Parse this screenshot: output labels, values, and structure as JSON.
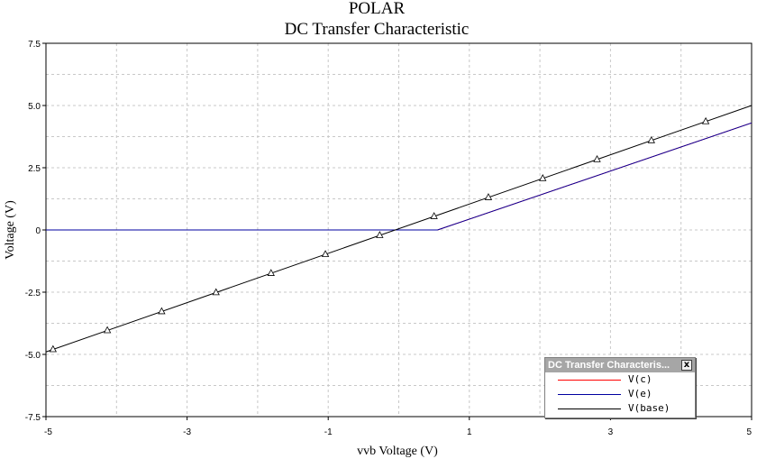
{
  "chart_data": {
    "type": "line",
    "title": "POLAR",
    "subtitle": "DC Transfer Characteristic",
    "xlabel": "vvb Voltage (V)",
    "ylabel": "Voltage (V)",
    "xlim": [
      -5,
      5
    ],
    "ylim": [
      -7.5,
      7.5
    ],
    "x_ticks": [
      -5,
      -3,
      -1,
      1,
      3,
      5
    ],
    "x_tick_labels": [
      "-5",
      "-3",
      "-1",
      "1",
      "3",
      "5"
    ],
    "y_ticks": [
      7.5,
      5.0,
      2.5,
      0,
      -2.5,
      -5.0,
      -7.5
    ],
    "y_tick_labels": [
      "7.5",
      "5.0",
      "2.5",
      "0",
      "-2.5",
      "-5.0",
      "-7.5"
    ],
    "grid": true,
    "legend_position": "bottom-right",
    "series": [
      {
        "name": "V(c)",
        "color": "#ff0000",
        "x": [
          -5,
          0.55,
          5
        ],
        "y": [
          0,
          0,
          4.3
        ]
      },
      {
        "name": "V(e)",
        "color": "#0000a0",
        "x": [
          -5,
          0.55,
          5
        ],
        "y": [
          0,
          0,
          4.3
        ]
      },
      {
        "name": "V(base)",
        "color": "#000000",
        "marker": "triangle",
        "x": [
          -5,
          5
        ],
        "y": [
          -4.9,
          5.0
        ],
        "marker_x": [
          -4.9,
          -4.13,
          -3.36,
          -2.59,
          -1.81,
          -1.04,
          -0.27,
          0.5,
          1.27,
          2.04,
          2.81,
          3.58,
          4.35
        ]
      }
    ]
  },
  "legend": {
    "title": "DC Transfer Characteris...",
    "close_symbol": "x"
  }
}
